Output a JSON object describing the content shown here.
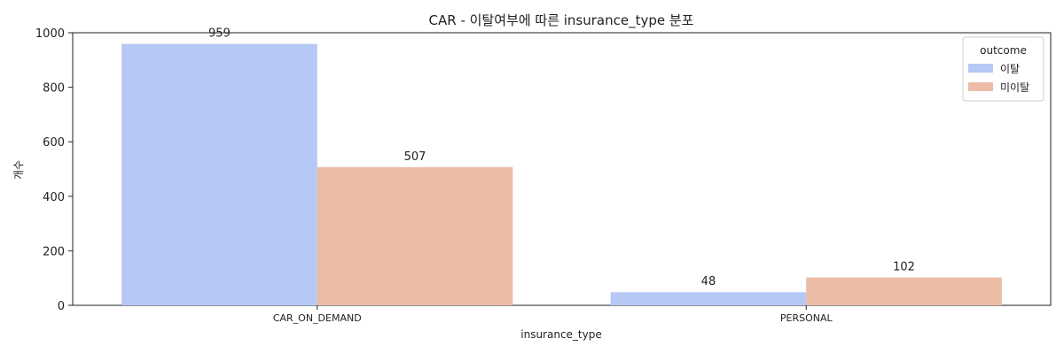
{
  "chart_data": {
    "type": "bar",
    "title": "CAR - 이탈여부에 따른 insurance_type 분포",
    "xlabel": "insurance_type",
    "ylabel": "개수",
    "categories": [
      "CAR_ON_DEMAND",
      "PERSONAL"
    ],
    "series": [
      {
        "name": "이탈",
        "values": [
          959,
          48
        ],
        "color": "#b5c9f4"
      },
      {
        "name": "미이탈",
        "values": [
          507,
          102
        ],
        "color": "#ecbca6"
      }
    ],
    "ylim": [
      0,
      1000
    ],
    "yticks": [
      0,
      200,
      400,
      600,
      800,
      1000
    ],
    "legend": {
      "title": "outcome",
      "placement": "top-right"
    },
    "grid": false,
    "data_labels": true
  }
}
